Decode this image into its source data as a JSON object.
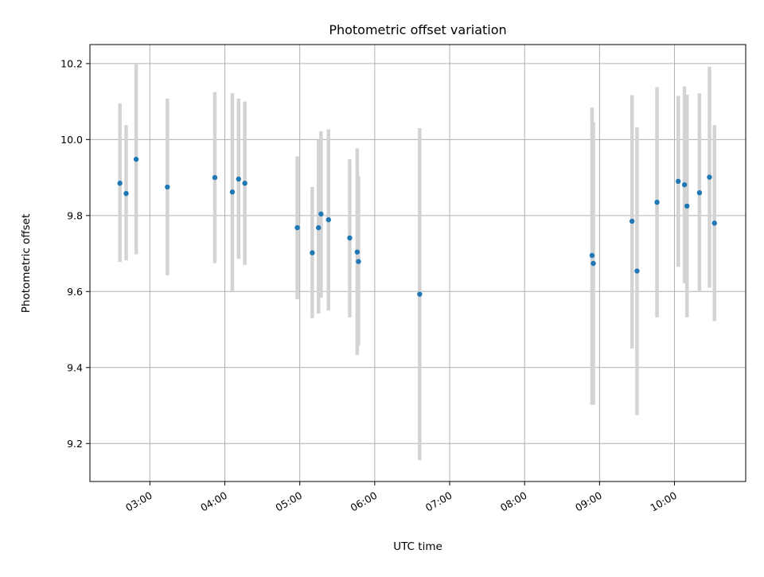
{
  "chart_data": {
    "type": "scatter",
    "title": "Photometric offset variation",
    "xlabel": "UTC time",
    "ylabel": "Photometric offset",
    "x_ticks": [
      "03:00",
      "04:00",
      "05:00",
      "06:00",
      "07:00",
      "08:00",
      "09:00",
      "10:00"
    ],
    "y_ticks": [
      "9.2",
      "9.4",
      "9.6",
      "9.8",
      "10.0",
      "10.2"
    ],
    "xlim": [
      "02:12",
      "10:57"
    ],
    "ylim": [
      9.1,
      10.25
    ],
    "grid": true,
    "colors": {
      "points": "#1f77b4",
      "errorbars": "#d3d3d3",
      "grid": "#b0b0b0"
    },
    "points": [
      {
        "x": "02:36",
        "y": 9.885,
        "ylo": 9.678,
        "yhi": 10.095
      },
      {
        "x": "02:41",
        "y": 9.858,
        "ylo": 9.682,
        "yhi": 10.038
      },
      {
        "x": "02:49",
        "y": 9.948,
        "ylo": 9.698,
        "yhi": 10.198
      },
      {
        "x": "03:14",
        "y": 9.875,
        "ylo": 9.643,
        "yhi": 10.108
      },
      {
        "x": "03:52",
        "y": 9.9,
        "ylo": 9.675,
        "yhi": 10.125
      },
      {
        "x": "04:06",
        "y": 9.862,
        "ylo": 9.602,
        "yhi": 10.122
      },
      {
        "x": "04:11",
        "y": 9.896,
        "ylo": 9.686,
        "yhi": 10.108
      },
      {
        "x": "04:16",
        "y": 9.885,
        "ylo": 9.67,
        "yhi": 10.1
      },
      {
        "x": "04:58",
        "y": 9.768,
        "ylo": 9.58,
        "yhi": 9.956
      },
      {
        "x": "05:10",
        "y": 9.702,
        "ylo": 9.53,
        "yhi": 9.875
      },
      {
        "x": "05:15",
        "y": 9.768,
        "ylo": 9.542,
        "yhi": 9.998
      },
      {
        "x": "05:17",
        "y": 9.804,
        "ylo": 9.584,
        "yhi": 10.022
      },
      {
        "x": "05:23",
        "y": 9.789,
        "ylo": 9.55,
        "yhi": 10.027
      },
      {
        "x": "05:40",
        "y": 9.741,
        "ylo": 9.532,
        "yhi": 9.948
      },
      {
        "x": "05:46",
        "y": 9.704,
        "ylo": 9.433,
        "yhi": 9.977
      },
      {
        "x": "05:47",
        "y": 9.679,
        "ylo": 9.458,
        "yhi": 9.903
      },
      {
        "x": "06:36",
        "y": 9.593,
        "ylo": 9.156,
        "yhi": 10.03
      },
      {
        "x": "08:54",
        "y": 9.695,
        "ylo": 9.302,
        "yhi": 10.084
      },
      {
        "x": "08:55",
        "y": 9.674,
        "ylo": 9.302,
        "yhi": 10.046
      },
      {
        "x": "09:26",
        "y": 9.785,
        "ylo": 9.45,
        "yhi": 10.117
      },
      {
        "x": "09:30",
        "y": 9.654,
        "ylo": 9.275,
        "yhi": 10.032
      },
      {
        "x": "09:46",
        "y": 9.835,
        "ylo": 9.532,
        "yhi": 10.138
      },
      {
        "x": "10:03",
        "y": 9.89,
        "ylo": 9.665,
        "yhi": 10.115
      },
      {
        "x": "10:08",
        "y": 9.881,
        "ylo": 9.622,
        "yhi": 10.14
      },
      {
        "x": "10:10",
        "y": 9.825,
        "ylo": 9.532,
        "yhi": 10.118
      },
      {
        "x": "10:20",
        "y": 9.86,
        "ylo": 9.6,
        "yhi": 10.122
      },
      {
        "x": "10:28",
        "y": 9.901,
        "ylo": 9.61,
        "yhi": 10.192
      },
      {
        "x": "10:32",
        "y": 9.78,
        "ylo": 9.522,
        "yhi": 10.038
      }
    ]
  }
}
